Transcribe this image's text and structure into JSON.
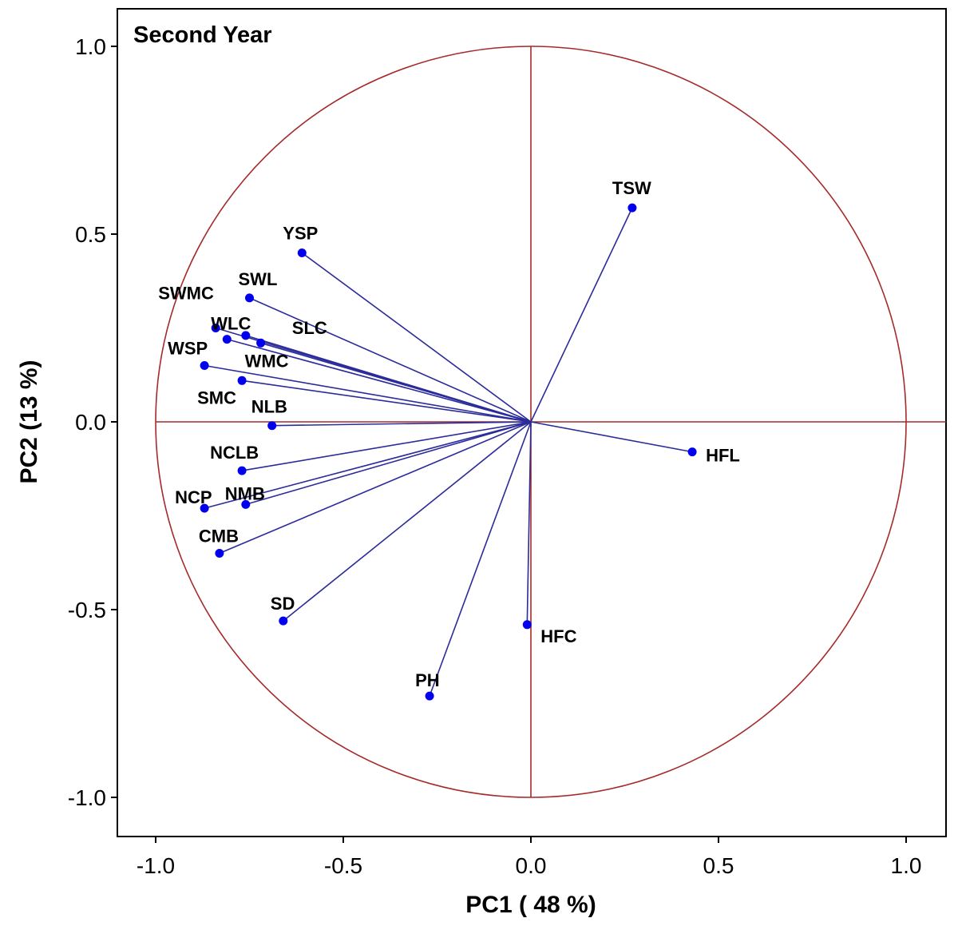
{
  "chart_data": {
    "type": "scatter",
    "title": "Second Year",
    "xlabel": "PC1 ( 48 %)",
    "ylabel": "PC2 (13 %)",
    "xlim": [
      -1.1,
      1.1
    ],
    "ylim": [
      -1.1,
      1.1
    ],
    "x_ticks": [
      "-1.0",
      "-0.5",
      "0.0",
      "0.5",
      "1.0"
    ],
    "y_ticks": [
      "1.0",
      "0.5",
      "0.0",
      "-0.5",
      "-1.0"
    ],
    "x_tick_values": [
      -1.0,
      -0.5,
      0.0,
      0.5,
      1.0
    ],
    "y_tick_values": [
      1.0,
      0.5,
      0.0,
      -0.5,
      -1.0
    ],
    "unit_circle": true,
    "reference_lines": [
      0,
      0
    ],
    "colors": {
      "circle": "#a52a2a",
      "vectors": "#2b2b9a",
      "points": "#0000ee",
      "frame": "#000000"
    },
    "points": [
      {
        "label": "TSW",
        "x": 0.27,
        "y": 0.57
      },
      {
        "label": "YSP",
        "x": -0.61,
        "y": 0.45
      },
      {
        "label": "SWL",
        "x": -0.75,
        "y": 0.33
      },
      {
        "label": "SWMC",
        "x": -0.84,
        "y": 0.25
      },
      {
        "label": "WLC",
        "x": -0.81,
        "y": 0.22
      },
      {
        "label": "SLC",
        "x": -0.76,
        "y": 0.23
      },
      {
        "label": "WMC",
        "x": -0.72,
        "y": 0.21
      },
      {
        "label": "WSP",
        "x": -0.87,
        "y": 0.15
      },
      {
        "label": "SMC",
        "x": -0.77,
        "y": 0.11
      },
      {
        "label": "NLB",
        "x": -0.69,
        "y": -0.01
      },
      {
        "label": "NCLB",
        "x": -0.77,
        "y": -0.13
      },
      {
        "label": "NCP",
        "x": -0.87,
        "y": -0.23
      },
      {
        "label": "NMB",
        "x": -0.76,
        "y": -0.22
      },
      {
        "label": "CMB",
        "x": -0.83,
        "y": -0.35
      },
      {
        "label": "SD",
        "x": -0.66,
        "y": -0.53
      },
      {
        "label": "PH",
        "x": -0.27,
        "y": -0.73
      },
      {
        "label": "HFC",
        "x": -0.01,
        "y": -0.54
      },
      {
        "label": "HFL",
        "x": 0.43,
        "y": -0.08
      }
    ],
    "visible_labels": {
      "TSW": "TSW",
      "YSP": "YSP",
      "SWL": "SWL",
      "SWMC": "SWMC",
      "WLC": "WLC",
      "SLC": "SLC",
      "WSP": "WSP",
      "WMC": "WMC",
      "SMC": "SMC",
      "NLB": "NLB",
      "NCLB": "NCLB",
      "NCP": "NCP",
      "NMB": "NMB",
      "CMB": "CMB",
      "SD": "SD",
      "PH": "PH",
      "HFC": "HFC",
      "HFL": "HFL"
    }
  }
}
